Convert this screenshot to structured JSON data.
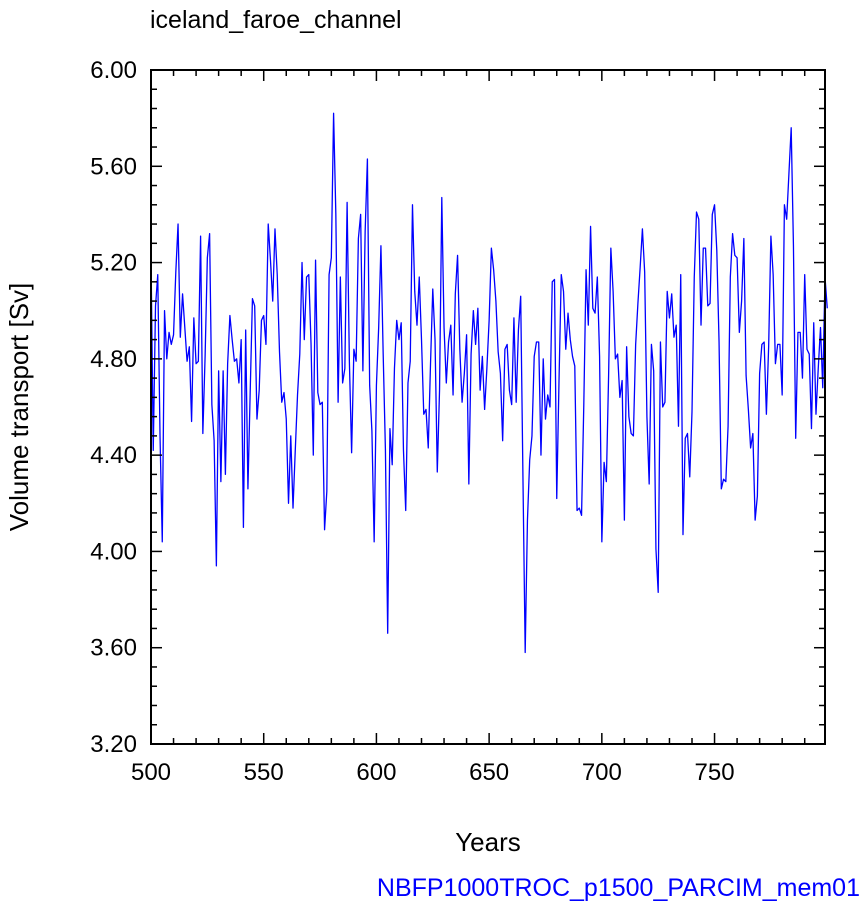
{
  "chart_data": {
    "type": "line",
    "title": "iceland_faroe_channel",
    "xlabel": "Years",
    "ylabel": "Volume transport [Sv]",
    "footer": "NBFP1000TROC_p1500_PARCIM_mem01",
    "xlim": [
      500,
      799
    ],
    "ylim": [
      3.2,
      6.0
    ],
    "xticks": [
      500,
      550,
      600,
      650,
      700,
      750
    ],
    "xtick_labels": [
      "500",
      "550",
      "600",
      "650",
      "700",
      "750"
    ],
    "yticks": [
      3.2,
      3.6,
      4.0,
      4.4,
      4.8,
      5.2,
      5.6,
      6.0
    ],
    "ytick_labels": [
      "3.20",
      "3.60",
      "4.00",
      "4.40",
      "4.80",
      "5.20",
      "5.60",
      "6.00"
    ],
    "grid": false,
    "colors": {
      "line": "#0000ff",
      "footer": "#0000ff",
      "axes": "#000000"
    },
    "series": [
      {
        "x_start": 500,
        "x_step": 1,
        "values": [
          5.23,
          4.42,
          5.02,
          5.15,
          4.48,
          4.04,
          5.0,
          4.8,
          4.91,
          4.86,
          4.9,
          5.16,
          5.36,
          4.89,
          5.07,
          4.93,
          4.79,
          4.85,
          4.54,
          4.97,
          4.78,
          4.79,
          5.31,
          4.49,
          4.81,
          5.22,
          5.32,
          4.61,
          4.46,
          3.94,
          4.75,
          4.29,
          4.75,
          4.32,
          4.78,
          4.98,
          4.88,
          4.79,
          4.8,
          4.7,
          4.88,
          4.1,
          4.92,
          4.26,
          4.66,
          5.05,
          5.02,
          4.55,
          4.67,
          4.96,
          4.98,
          4.86,
          5.36,
          5.21,
          5.04,
          5.34,
          5.15,
          4.83,
          4.62,
          4.66,
          4.55,
          4.2,
          4.48,
          4.18,
          4.42,
          4.65,
          4.82,
          5.2,
          4.88,
          5.14,
          5.15,
          4.86,
          4.4,
          5.21,
          4.66,
          4.61,
          4.62,
          4.09,
          4.25,
          5.15,
          5.22,
          5.82,
          5.4,
          4.62,
          5.14,
          4.7,
          4.76,
          5.45,
          4.79,
          4.41,
          4.84,
          4.79,
          5.3,
          5.4,
          4.75,
          5.33,
          5.63,
          4.69,
          4.5,
          4.04,
          4.69,
          4.93,
          5.27,
          4.82,
          4.42,
          3.66,
          4.51,
          4.36,
          4.76,
          4.96,
          4.88,
          4.95,
          4.42,
          4.17,
          4.7,
          4.79,
          5.44,
          5.08,
          4.94,
          5.14,
          4.88,
          4.57,
          4.59,
          4.43,
          4.78,
          5.09,
          4.88,
          4.33,
          4.67,
          5.47,
          4.93,
          4.7,
          4.87,
          4.94,
          4.65,
          5.07,
          5.23,
          4.84,
          4.62,
          4.74,
          4.9,
          4.28,
          4.82,
          5.0,
          4.86,
          5.01,
          4.67,
          4.81,
          4.59,
          4.76,
          4.96,
          5.26,
          5.17,
          5.04,
          4.83,
          4.74,
          4.46,
          4.84,
          4.86,
          4.67,
          4.61,
          4.97,
          4.62,
          4.92,
          5.06,
          4.31,
          3.58,
          4.13,
          4.38,
          4.48,
          4.81,
          4.87,
          4.87,
          4.4,
          4.8,
          4.55,
          4.65,
          4.6,
          5.12,
          5.13,
          4.22,
          4.71,
          5.15,
          5.08,
          4.84,
          4.99,
          4.88,
          4.81,
          4.77,
          4.17,
          4.18,
          4.15,
          4.61,
          5.17,
          4.94,
          5.35,
          5.01,
          4.99,
          5.14,
          4.81,
          4.04,
          4.37,
          4.29,
          4.73,
          5.26,
          5.08,
          4.8,
          4.82,
          4.64,
          4.71,
          4.13,
          4.85,
          4.56,
          4.49,
          4.48,
          4.86,
          5.03,
          5.18,
          5.34,
          5.16,
          4.56,
          4.28,
          4.86,
          4.75,
          4.01,
          3.83,
          4.87,
          4.6,
          4.62,
          5.08,
          4.97,
          5.07,
          4.89,
          4.94,
          4.52,
          5.15,
          4.07,
          4.47,
          4.49,
          4.31,
          4.58,
          5.14,
          5.41,
          5.38,
          4.94,
          5.26,
          5.26,
          5.02,
          5.03,
          5.4,
          5.44,
          5.25,
          4.87,
          4.26,
          4.3,
          4.29,
          4.52,
          5.14,
          5.32,
          5.23,
          5.22,
          4.91,
          5.04,
          5.3,
          4.73,
          4.59,
          4.43,
          4.49,
          4.13,
          4.23,
          4.74,
          4.86,
          4.87,
          4.57,
          4.85,
          5.31,
          5.15,
          4.78,
          4.86,
          4.86,
          4.65,
          5.44,
          5.38,
          5.57,
          5.76,
          5.27,
          4.47,
          4.91,
          4.91,
          4.72,
          5.15,
          4.84,
          4.82,
          4.51,
          4.95,
          4.57,
          4.76,
          4.93,
          4.68,
          5.14,
          5.01
        ]
      }
    ]
  }
}
